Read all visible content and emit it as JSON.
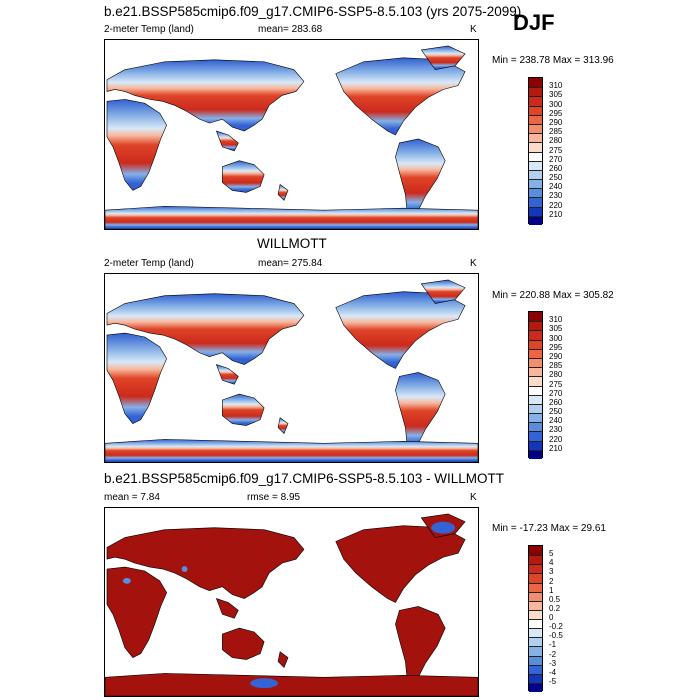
{
  "season": "DJF",
  "panels": [
    {
      "title": "b.e21.BSSP585cmip6.f09_g17.CMIP6-SSP5-8.5.103 (yrs 2075-2099)",
      "left_label": "2-meter Temp (land)",
      "center_label": "mean= 283.68",
      "units": "K",
      "minmax": "Min = 238.78 Max = 313.96",
      "colorbar": {
        "labels": [
          "310",
          "305",
          "300",
          "295",
          "290",
          "285",
          "280",
          "275",
          "270",
          "260",
          "250",
          "240",
          "230",
          "220",
          "210"
        ],
        "colors": [
          "#8b0000",
          "#b21a12",
          "#cc2a1c",
          "#de4428",
          "#ec6646",
          "#f28d6e",
          "#f7b79c",
          "#fbdccb",
          "#ffffff",
          "#d9e8f7",
          "#b3cfef",
          "#86b0e6",
          "#5a8ddc",
          "#3363d4",
          "#1436b8",
          "#00008b"
        ]
      },
      "map_style": "absolute"
    },
    {
      "title": "WILLMOTT",
      "left_label": "2-meter Temp (land)",
      "center_label": "mean= 275.84",
      "units": "K",
      "minmax": "Min = 220.88 Max = 305.82",
      "colorbar": {
        "labels": [
          "310",
          "305",
          "300",
          "295",
          "290",
          "285",
          "280",
          "275",
          "270",
          "260",
          "250",
          "240",
          "230",
          "220",
          "210"
        ],
        "colors": [
          "#8b0000",
          "#b21a12",
          "#cc2a1c",
          "#de4428",
          "#ec6646",
          "#f28d6e",
          "#f7b79c",
          "#fbdccb",
          "#ffffff",
          "#d9e8f7",
          "#b3cfef",
          "#86b0e6",
          "#5a8ddc",
          "#3363d4",
          "#1436b8",
          "#00008b"
        ]
      },
      "map_style": "absolute"
    },
    {
      "title": "b.e21.BSSP585cmip6.f09_g17.CMIP6-SSP5-8.5.103 - WILLMOTT",
      "left_label": "mean =   7.84",
      "center_label": "rmse =   8.95",
      "units": "K",
      "minmax": "Min = -17.23 Max =  29.61",
      "colorbar": {
        "labels": [
          "5",
          "4",
          "3",
          "2",
          "1",
          "0.5",
          "0.2",
          "0",
          "-0.2",
          "-0.5",
          "-1",
          "-2",
          "-3",
          "-4",
          "-5"
        ],
        "colors": [
          "#8b0000",
          "#b21a12",
          "#cc2a1c",
          "#de4428",
          "#ec6646",
          "#f28d6e",
          "#f7b79c",
          "#fbdccb",
          "#ffffff",
          "#d9e8f7",
          "#b3cfef",
          "#86b0e6",
          "#5a8ddc",
          "#3363d4",
          "#1436b8",
          "#00008b"
        ]
      },
      "map_style": "difference"
    }
  ]
}
